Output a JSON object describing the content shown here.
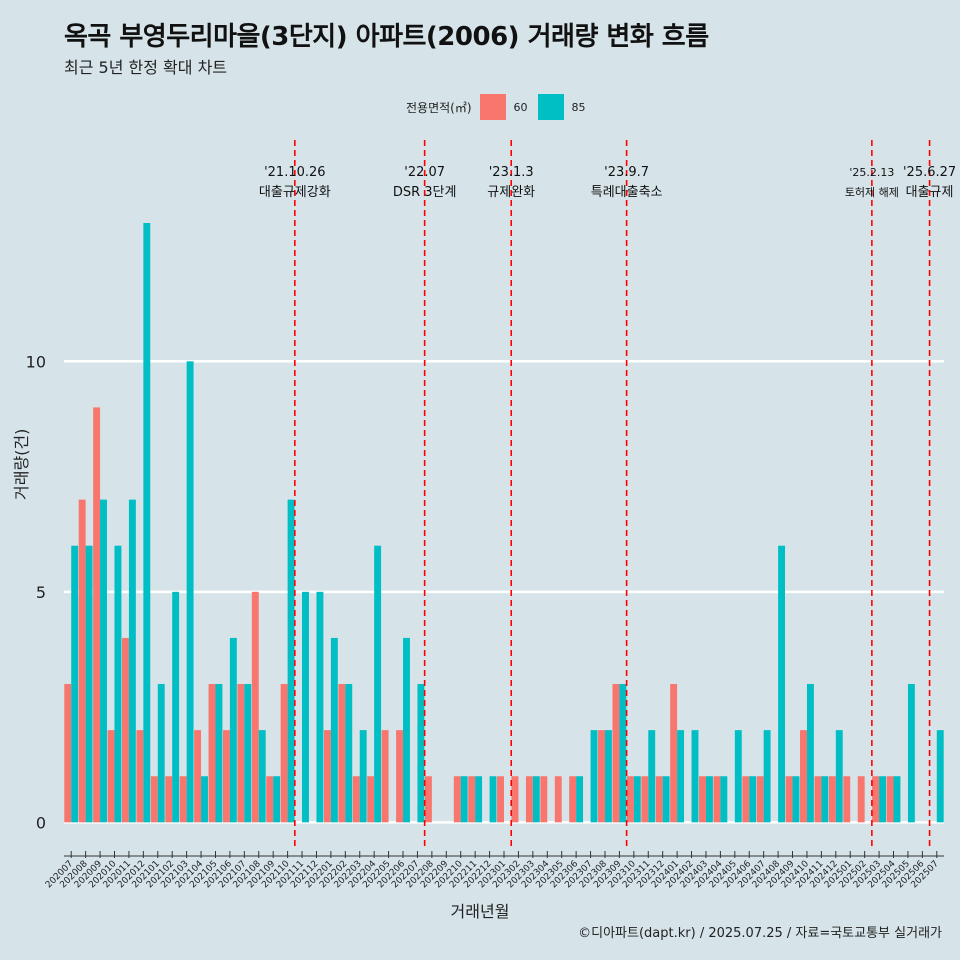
{
  "title": "옥곡 부영두리마을(3단지) 아파트(2006) 거래량 변화 흐름",
  "subtitle": "최근 5년 한정 확대 차트",
  "caption": "©디아파트(dapt.kr) / 2025.07.25 / 자료=국토교통부 실거래가",
  "legend": {
    "title": "전용면적(㎡)",
    "items": [
      {
        "label": "60",
        "color": "#F8766D"
      },
      {
        "label": "85",
        "color": "#00BFC4"
      }
    ]
  },
  "chart_data": {
    "type": "bar",
    "title": "옥곡 부영두리마을(3단지) 아파트(2006) 거래량 변화 흐름",
    "xlabel": "거래년월",
    "ylabel": "거래량(건)",
    "ylim": [
      -0.6,
      14.8
    ],
    "yticks": [
      0,
      5,
      10
    ],
    "categories": [
      "202007",
      "202008",
      "202009",
      "202010",
      "202011",
      "202012",
      "202101",
      "202102",
      "202103",
      "202104",
      "202105",
      "202106",
      "202107",
      "202108",
      "202109",
      "202110",
      "202111",
      "202112",
      "202201",
      "202202",
      "202203",
      "202204",
      "202205",
      "202206",
      "202207",
      "202208",
      "202209",
      "202210",
      "202211",
      "202212",
      "202301",
      "202302",
      "202303",
      "202304",
      "202305",
      "202306",
      "202307",
      "202308",
      "202309",
      "202310",
      "202311",
      "202312",
      "202401",
      "202402",
      "202403",
      "202404",
      "202405",
      "202406",
      "202407",
      "202408",
      "202409",
      "202410",
      "202411",
      "202412",
      "202501",
      "202502",
      "202503",
      "202504",
      "202505",
      "202506",
      "202507"
    ],
    "series": [
      {
        "name": "60",
        "color": "#F8766D",
        "values": [
          3,
          7,
          9,
          2,
          4,
          2,
          1,
          1,
          1,
          2,
          3,
          2,
          3,
          5,
          1,
          3,
          0,
          0,
          2,
          3,
          1,
          1,
          2,
          2,
          0,
          1,
          0,
          1,
          1,
          0,
          1,
          1,
          1,
          1,
          1,
          1,
          0,
          2,
          3,
          1,
          1,
          1,
          3,
          0,
          1,
          1,
          0,
          1,
          1,
          0,
          1,
          2,
          1,
          1,
          1,
          1,
          1,
          1,
          0,
          0,
          0
        ]
      },
      {
        "name": "85",
        "color": "#00BFC4",
        "values": [
          6,
          6,
          7,
          6,
          7,
          13,
          3,
          5,
          10,
          1,
          3,
          4,
          3,
          2,
          1,
          7,
          5,
          5,
          4,
          3,
          2,
          6,
          0,
          4,
          3,
          0,
          0,
          1,
          1,
          1,
          0,
          0,
          1,
          0,
          0,
          1,
          2,
          2,
          3,
          1,
          2,
          1,
          2,
          2,
          1,
          1,
          2,
          1,
          2,
          6,
          1,
          3,
          1,
          2,
          0,
          0,
          1,
          1,
          3,
          0,
          2
        ]
      }
    ],
    "events": [
      {
        "after": "202110",
        "date": "'21.10.26",
        "label": "대출규제강화"
      },
      {
        "after": "202207",
        "date": "'22.07",
        "label": "DSR 3단계"
      },
      {
        "after": "202301",
        "date": "'23.1.3",
        "label": "규제완화"
      },
      {
        "after": "202309",
        "date": "'23.9.7",
        "label": "특례대출축소"
      },
      {
        "after": "202502",
        "date": "'25.2.13",
        "label": "토허제 해제"
      },
      {
        "after": "202506",
        "date": "'25.6.27",
        "label": "대출규제"
      }
    ],
    "event_color": "#FF0000"
  }
}
